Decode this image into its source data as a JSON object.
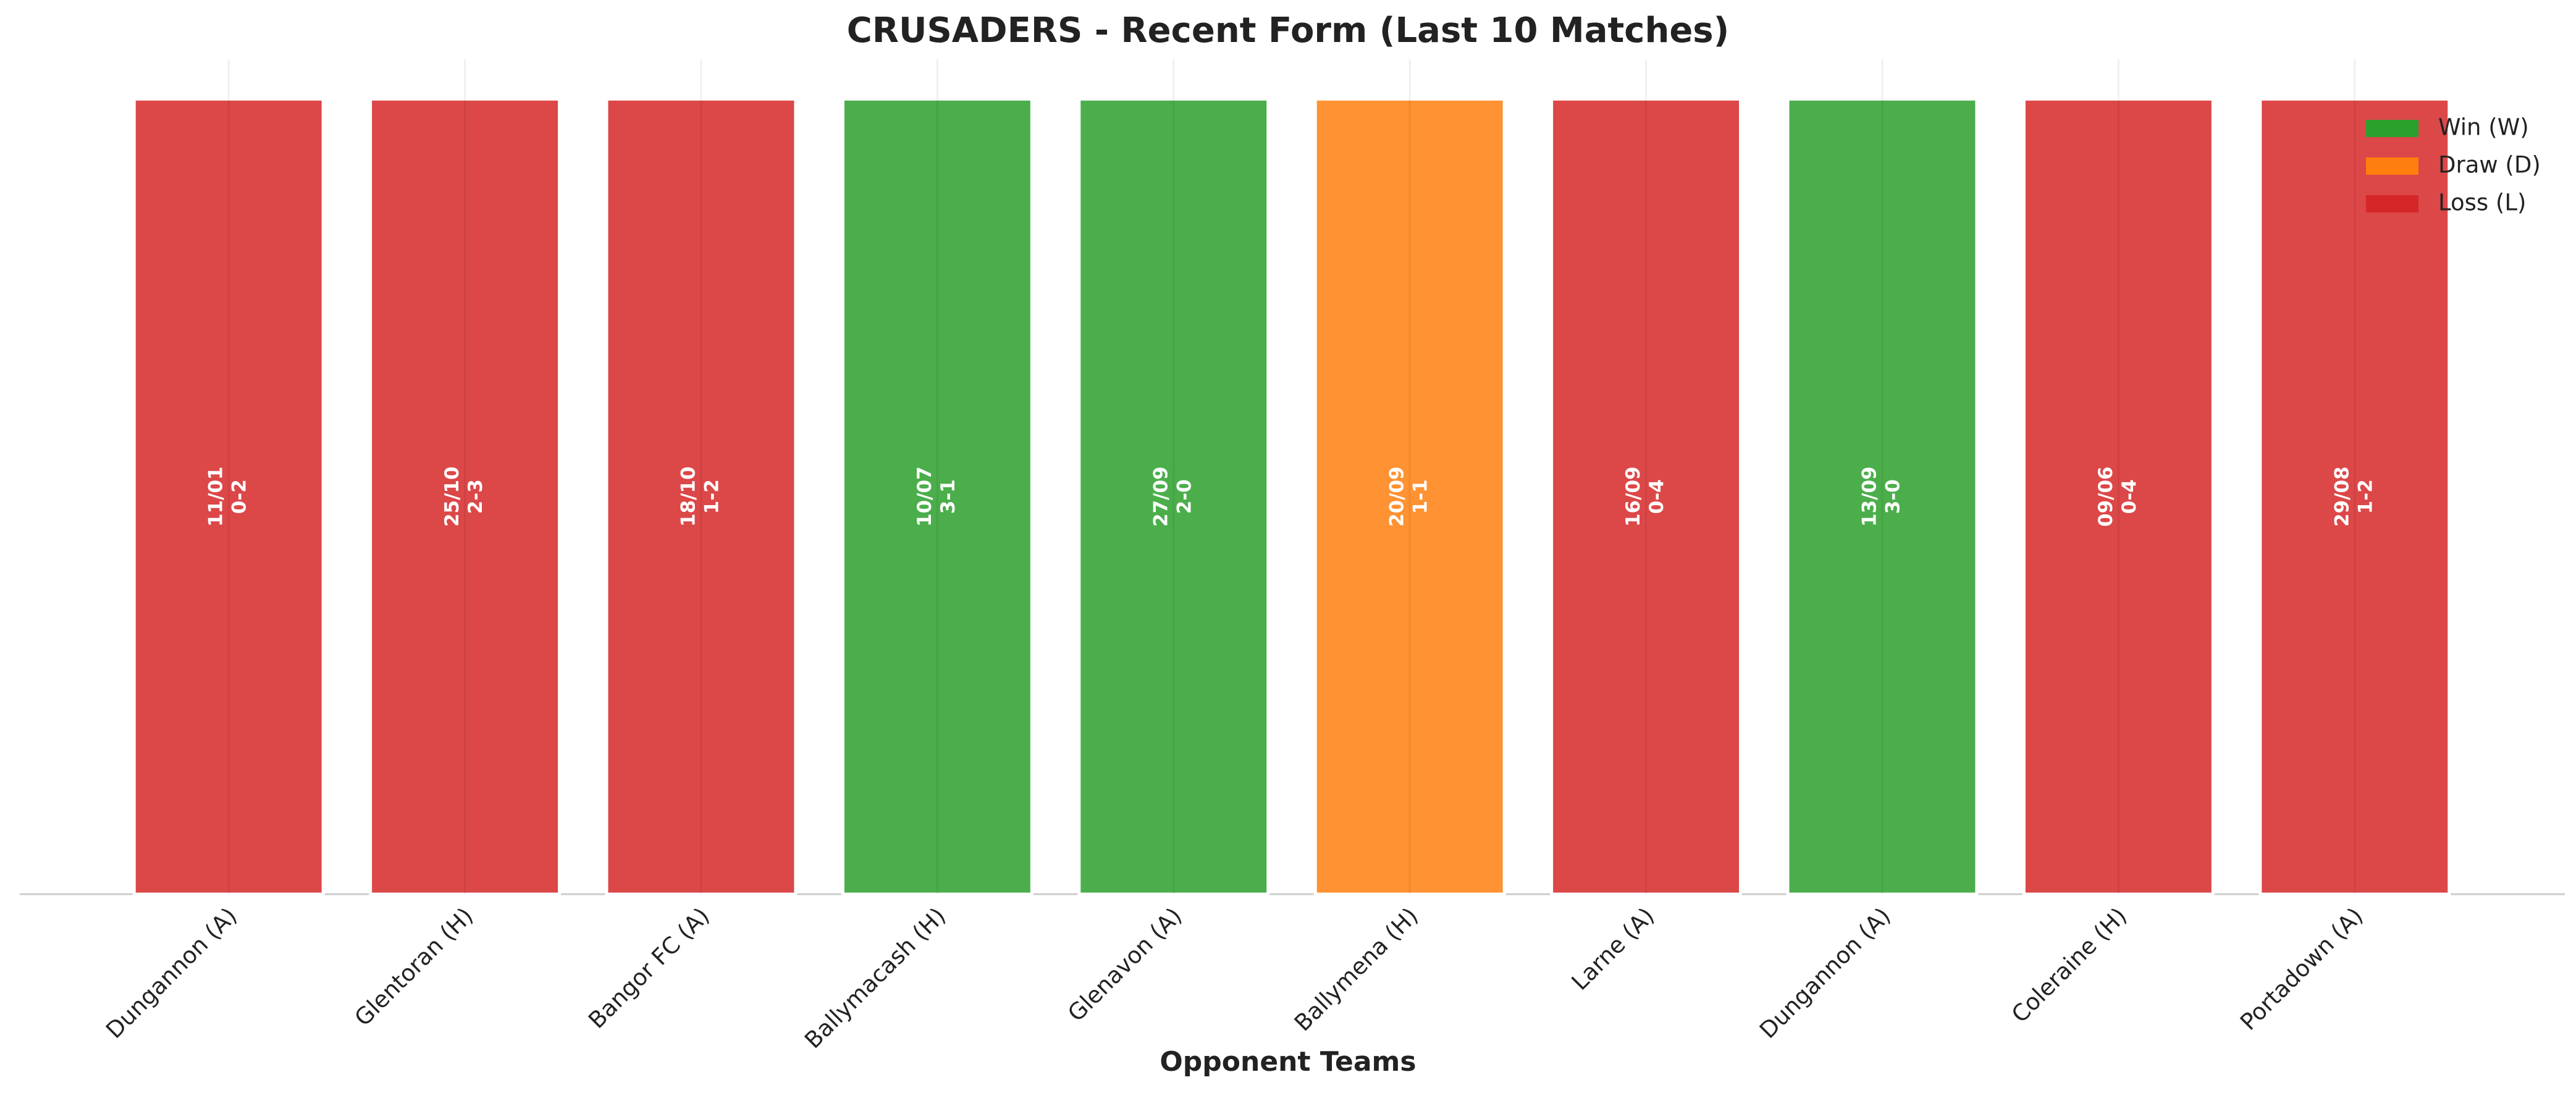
{
  "chart_data": {
    "type": "bar",
    "title": "CRUSADERS - Recent Form (Last 10 Matches)",
    "xlabel": "Opponent Teams",
    "categories": [
      "Dungannon (A)",
      "Glentoran (H)",
      "Bangor FC (A)",
      "Ballymacash (H)",
      "Glenavon (A)",
      "Ballymena (H)",
      "Larne (A)",
      "Dungannon (A)",
      "Coleraine (H)",
      "Portadown (A)"
    ],
    "values": [
      1,
      1,
      1,
      1,
      1,
      1,
      1,
      1,
      1,
      1
    ],
    "dates": [
      "11/01",
      "25/10",
      "18/10",
      "10/07",
      "27/09",
      "20/09",
      "16/09",
      "13/09",
      "09/06",
      "29/08"
    ],
    "scores": [
      "0-2",
      "2-3",
      "1-2",
      "3-1",
      "2-0",
      "1-1",
      "0-4",
      "3-0",
      "0-4",
      "1-2"
    ],
    "colors": [
      "#d62728",
      "#d62728",
      "#d62728",
      "#2ca02c",
      "#2ca02c",
      "#ff7f0e",
      "#d62728",
      "#2ca02c",
      "#d62728",
      "#d62728"
    ],
    "alpha": 0.85,
    "ylim": [
      0,
      1.05
    ],
    "legend": {
      "position": "upper right",
      "entries": [
        {
          "name": "Win (W)",
          "color": "#2ca02c"
        },
        {
          "name": "Draw (D)",
          "color": "#ff7f0e"
        },
        {
          "name": "Loss (L)",
          "color": "#d62728"
        }
      ]
    }
  }
}
